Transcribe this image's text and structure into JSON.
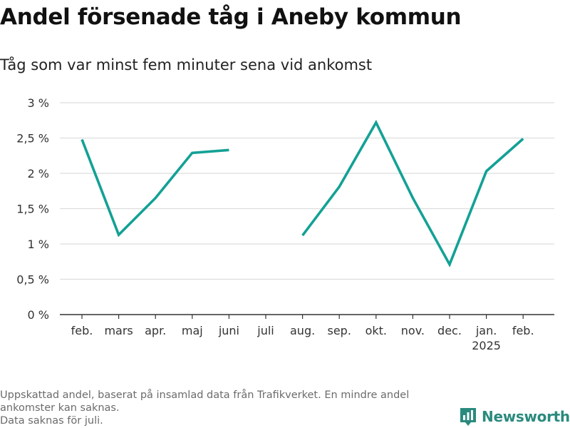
{
  "title": "Andel försenade tåg i Aneby kommun",
  "subtitle": "Tåg som var minst fem minuter sena vid ankomst",
  "footnote": {
    "line1": "Uppskattad andel, baserat på insamlad data från Trafikverket. En mindre andel ankomster kan saknas.",
    "line2": "Data saknas för juli."
  },
  "logo": {
    "text": "Newsworthy",
    "icon": "newsworthy-logo-icon"
  },
  "colors": {
    "line": "#13a195",
    "grid": "#dddddd",
    "axis": "#333333",
    "brand": "#2a8a7e"
  },
  "chart_data": {
    "type": "line",
    "categories": [
      "feb.",
      "mars",
      "apr.",
      "maj",
      "juni",
      "juli",
      "aug.",
      "sep.",
      "okt.",
      "nov.",
      "dec.",
      "jan.",
      "feb."
    ],
    "category_sublabels": [
      "",
      "",
      "",
      "",
      "",
      "",
      "",
      "",
      "",
      "",
      "",
      "2025",
      ""
    ],
    "series": [
      {
        "values": [
          2.48,
          1.13,
          1.65,
          2.29,
          2.33,
          null,
          1.12,
          1.81,
          2.72,
          1.65,
          0.71,
          2.03,
          2.49
        ]
      }
    ],
    "yticks": [
      0,
      0.5,
      1,
      1.5,
      2,
      2.5,
      3
    ],
    "ytick_labels": [
      "0 %",
      "0,5 %",
      "1 %",
      "1,5 %",
      "2 %",
      "2,5 %",
      "3 %"
    ],
    "ylim": [
      0,
      3
    ],
    "grid": true,
    "legend": "none"
  }
}
